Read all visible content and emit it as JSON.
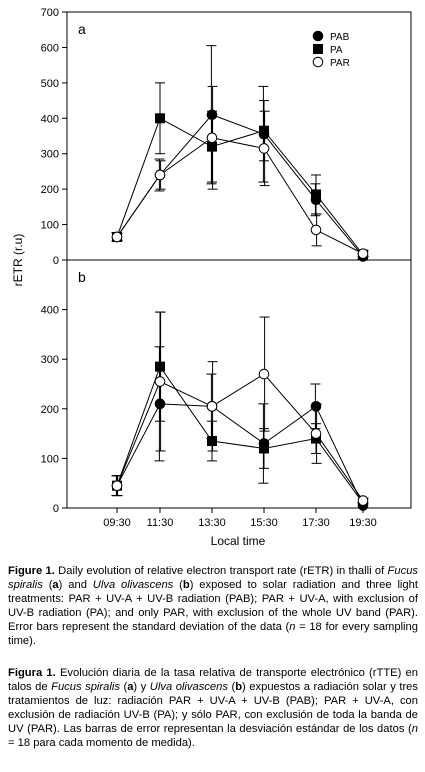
{
  "chart_data": [
    {
      "type": "line",
      "panel_label": "a",
      "x": [
        "09:30",
        "11:30",
        "13:30",
        "15:30",
        "17:30",
        "19:30"
      ],
      "ylim": [
        0,
        700
      ],
      "yticks": [
        0,
        100,
        200,
        300,
        400,
        500,
        600,
        700
      ],
      "legend_position": "top-right",
      "series": [
        {
          "name": "PAB",
          "marker": "filled-circle",
          "values": [
            65,
            240,
            410,
            355,
            170,
            10
          ],
          "errors": [
            12,
            45,
            195,
            135,
            45,
            8
          ]
        },
        {
          "name": "PA",
          "marker": "filled-square",
          "values": [
            65,
            400,
            320,
            365,
            185,
            15
          ],
          "errors": [
            10,
            100,
            100,
            85,
            55,
            8
          ]
        },
        {
          "name": "PAR",
          "marker": "open-circle",
          "values": [
            65,
            240,
            345,
            315,
            85,
            18
          ],
          "errors": [
            10,
            40,
            145,
            105,
            45,
            8
          ]
        }
      ]
    },
    {
      "type": "line",
      "panel_label": "b",
      "x": [
        "09:30",
        "11:30",
        "13:30",
        "15:30",
        "17:30",
        "19:30"
      ],
      "ylim": [
        0,
        500
      ],
      "yticks": [
        0,
        100,
        200,
        300,
        400
      ],
      "series": [
        {
          "name": "PAB",
          "marker": "filled-circle",
          "values": [
            45,
            210,
            205,
            130,
            205,
            5
          ],
          "errors": [
            20,
            115,
            65,
            80,
            45,
            5
          ]
        },
        {
          "name": "PA",
          "marker": "filled-square",
          "values": [
            45,
            285,
            135,
            120,
            140,
            10
          ],
          "errors": [
            20,
            110,
            40,
            40,
            30,
            5
          ]
        },
        {
          "name": "PAR",
          "marker": "open-circle",
          "values": [
            45,
            255,
            205,
            270,
            150,
            15
          ],
          "errors": [
            20,
            140,
            90,
            115,
            60,
            5
          ]
        }
      ]
    }
  ],
  "axes": {
    "ylabel": "rETR (r.u)",
    "xlabel": "Local time"
  },
  "caption_en": {
    "label": "Figure 1.",
    "t1": " Daily evolution of relative electron transport rate (rETR) in thalli of ",
    "sp1": "Fucus spiralis",
    "t2": " (",
    "a": "a",
    "t3": ") and ",
    "sp2": "Ulva olivascens",
    "t4": " (",
    "b": "b",
    "t5": ") exposed to solar radiation and three light treatments: PAR + UV-A + UV-B radiation (PAB); PAR + UV-A, with exclusion of UV-B radiation (PA); and only PAR, with exclusion of the whole UV band (PAR). Error bars represent the standard deviation of the data (",
    "n": "n",
    "t6": " = 18 for every sampling time)."
  },
  "caption_es": {
    "label": "Figura 1.",
    "t1": " Evolución diaria de la tasa relativa de transporte electrónico (rTTE) en talos de ",
    "sp1": "Fucus spiralis",
    "t2": " (",
    "a": "a",
    "t3": ") y ",
    "sp2": "Ulva olivascens",
    "t4": " (",
    "b": "b",
    "t5": ") expuestos a radiación solar y tres tratamientos de luz: radiación PAR + UV-A + UV-B (PAB); PAR + UV-A, con exclusión de radiación UV-B (PA); y sólo PAR, con exclusión de toda la banda de UV (PAR). Las barras de error representan la desviación estándar de los datos (",
    "n": "n",
    "t6": " = 18 para cada momento de medida)."
  }
}
